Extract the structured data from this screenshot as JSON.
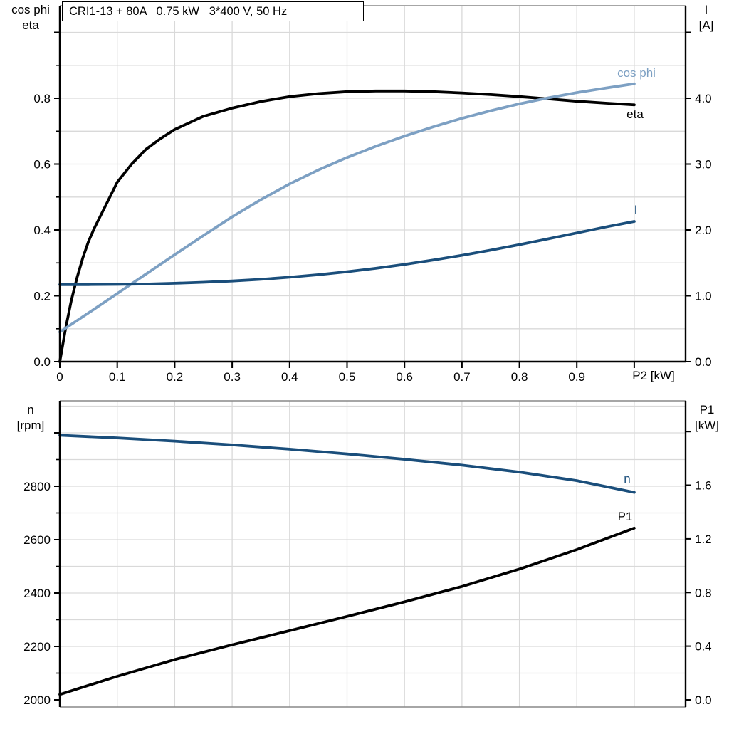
{
  "colors": {
    "curve_black": "#000000",
    "curve_dark_blue": "#1a4e7b",
    "curve_light_blue": "#7da0c3",
    "grid": "#d9d9d9",
    "frame": "#888888",
    "axis": "#000000",
    "text": "#000000",
    "background": "#ffffff"
  },
  "axis_titles": {
    "top_left_line1": "cos phi",
    "top_left_line2": "eta",
    "top_right_line1": "I",
    "top_right_line2": "[A]",
    "bottom_left_line1": "n",
    "bottom_left_line2": "[rpm]",
    "bottom_right_line1": "P1",
    "bottom_right_line2": "[kW]",
    "x_axis": "P2 [kW]"
  },
  "chart_data": [
    {
      "type": "line",
      "title": "CRI1-13 + 80A   0.75 kW   3*400 V, 50 Hz",
      "xlabel": "P2 [kW]",
      "xlim": [
        0,
        1.0893
      ],
      "grid_on": true,
      "x_axis_black": true,
      "frame_gray": [
        "top"
      ],
      "x_grid": [
        0.1,
        0.2,
        0.3,
        0.4,
        0.5,
        0.6,
        0.7,
        0.8,
        0.9,
        1.0
      ],
      "y_grid": [
        0.1,
        0.2,
        0.3,
        0.4,
        0.5,
        0.6,
        0.7,
        0.8,
        0.9,
        1.0
      ],
      "x_ticks": [
        {
          "v": 0,
          "label": "0"
        },
        {
          "v": 0.1,
          "label": "0.1"
        },
        {
          "v": 0.2,
          "label": "0.2"
        },
        {
          "v": 0.3,
          "label": "0.3"
        },
        {
          "v": 0.4,
          "label": "0.4"
        },
        {
          "v": 0.5,
          "label": "0.5"
        },
        {
          "v": 0.6,
          "label": "0.6"
        },
        {
          "v": 0.7,
          "label": "0.7"
        },
        {
          "v": 0.8,
          "label": "0.8"
        },
        {
          "v": 0.9,
          "label": "0.9"
        },
        {
          "v": 1.0,
          "label": ""
        }
      ],
      "left_axis": {
        "label": "cos phi / eta",
        "lim": [
          0,
          1.0811
        ],
        "ticks": [
          {
            "v": 0,
            "label": "0.0"
          },
          {
            "v": 0.2,
            "label": "0.2"
          },
          {
            "v": 0.4,
            "label": "0.4"
          },
          {
            "v": 0.6,
            "label": "0.6"
          },
          {
            "v": 0.8,
            "label": "0.8"
          },
          {
            "v": 1.0,
            "label": ""
          }
        ],
        "minor": [
          0.1,
          0.3,
          0.5,
          0.7,
          0.9
        ]
      },
      "right_axis": {
        "label": "I [A]",
        "lim": [
          0,
          5.4054
        ],
        "ticks": [
          {
            "v": 0,
            "label": "0.0"
          },
          {
            "v": 1,
            "label": "1.0"
          },
          {
            "v": 2,
            "label": "2.0"
          },
          {
            "v": 3,
            "label": "3.0"
          },
          {
            "v": 4,
            "label": "4.0"
          },
          {
            "v": 5,
            "label": ""
          }
        ],
        "minor": []
      },
      "series": [
        {
          "name": "eta",
          "axis": "left",
          "color_key": "curve_black",
          "x": [
            0,
            0.01,
            0.02,
            0.03,
            0.04,
            0.05,
            0.06,
            0.08,
            0.1,
            0.125,
            0.15,
            0.175,
            0.2,
            0.25,
            0.3,
            0.35,
            0.4,
            0.45,
            0.5,
            0.55,
            0.6,
            0.65,
            0.7,
            0.75,
            0.8,
            0.85,
            0.9,
            0.95,
            1.0
          ],
          "values": [
            0,
            0.1,
            0.185,
            0.255,
            0.315,
            0.365,
            0.405,
            0.475,
            0.545,
            0.6,
            0.645,
            0.677,
            0.705,
            0.745,
            0.77,
            0.79,
            0.805,
            0.814,
            0.82,
            0.822,
            0.822,
            0.82,
            0.816,
            0.811,
            0.805,
            0.798,
            0.791,
            0.785,
            0.78
          ]
        },
        {
          "name": "cos phi",
          "axis": "left",
          "color_key": "curve_light_blue",
          "x": [
            0,
            0.05,
            0.1,
            0.15,
            0.2,
            0.25,
            0.3,
            0.35,
            0.4,
            0.45,
            0.5,
            0.55,
            0.6,
            0.65,
            0.7,
            0.75,
            0.8,
            0.85,
            0.9,
            0.95,
            1.0
          ],
          "values": [
            0.09,
            0.148,
            0.207,
            0.266,
            0.325,
            0.383,
            0.44,
            0.492,
            0.54,
            0.582,
            0.62,
            0.654,
            0.685,
            0.713,
            0.739,
            0.762,
            0.783,
            0.801,
            0.817,
            0.831,
            0.844
          ]
        },
        {
          "name": "I",
          "axis": "right",
          "color_key": "curve_dark_blue",
          "x": [
            0,
            0.05,
            0.1,
            0.15,
            0.2,
            0.25,
            0.3,
            0.35,
            0.4,
            0.45,
            0.5,
            0.55,
            0.6,
            0.65,
            0.7,
            0.75,
            0.8,
            0.85,
            0.9,
            0.95,
            1.0
          ],
          "values": [
            1.17,
            1.17,
            1.173,
            1.178,
            1.19,
            1.205,
            1.225,
            1.25,
            1.282,
            1.32,
            1.365,
            1.417,
            1.477,
            1.543,
            1.615,
            1.693,
            1.777,
            1.865,
            1.955,
            2.045,
            2.13
          ]
        }
      ]
    },
    {
      "type": "line",
      "title": "",
      "xlabel": "",
      "xlim": [
        0,
        1.0893
      ],
      "grid_on": true,
      "x_axis_black": false,
      "frame_gray": [
        "top",
        "bottom"
      ],
      "x_grid": [
        0.1,
        0.2,
        0.3,
        0.4,
        0.5,
        0.6,
        0.7,
        0.8,
        0.9,
        1.0
      ],
      "y_grid": [
        2100,
        2200,
        2300,
        2400,
        2500,
        2600,
        2700,
        2800,
        2900,
        3000,
        3100
      ],
      "x_ticks": [],
      "left_axis": {
        "label": "n [rpm]",
        "lim": [
          1973.3,
          3120
        ],
        "ticks": [
          {
            "v": 2000,
            "label": "2000"
          },
          {
            "v": 2200,
            "label": "2200"
          },
          {
            "v": 2400,
            "label": "2400"
          },
          {
            "v": 2600,
            "label": "2600"
          },
          {
            "v": 2800,
            "label": "2800"
          },
          {
            "v": 3000,
            "label": ""
          }
        ],
        "minor": [
          2100,
          2300,
          2500,
          2700,
          2900
        ]
      },
      "right_axis": {
        "label": "P1 [kW]",
        "lim": [
          -0.0533,
          2.2293
        ],
        "ticks": [
          {
            "v": 0,
            "label": "0.0"
          },
          {
            "v": 0.4,
            "label": "0.4"
          },
          {
            "v": 0.8,
            "label": "0.8"
          },
          {
            "v": 1.2,
            "label": "1.2"
          },
          {
            "v": 1.6,
            "label": "1.6"
          },
          {
            "v": 2.0,
            "label": ""
          }
        ],
        "minor": []
      },
      "series": [
        {
          "name": "n",
          "axis": "left",
          "color_key": "curve_dark_blue",
          "x": [
            0,
            0.1,
            0.2,
            0.3,
            0.4,
            0.5,
            0.6,
            0.7,
            0.8,
            0.9,
            1.0
          ],
          "values": [
            2991,
            2981,
            2969,
            2955,
            2939,
            2921,
            2901,
            2879,
            2853,
            2821,
            2777
          ]
        },
        {
          "name": "P1",
          "axis": "right",
          "color_key": "curve_black",
          "x": [
            0,
            0.1,
            0.2,
            0.3,
            0.4,
            0.5,
            0.6,
            0.7,
            0.8,
            0.9,
            1.0
          ],
          "values": [
            0.04,
            0.175,
            0.3,
            0.41,
            0.515,
            0.622,
            0.73,
            0.845,
            0.975,
            1.12,
            1.28
          ]
        }
      ]
    }
  ]
}
